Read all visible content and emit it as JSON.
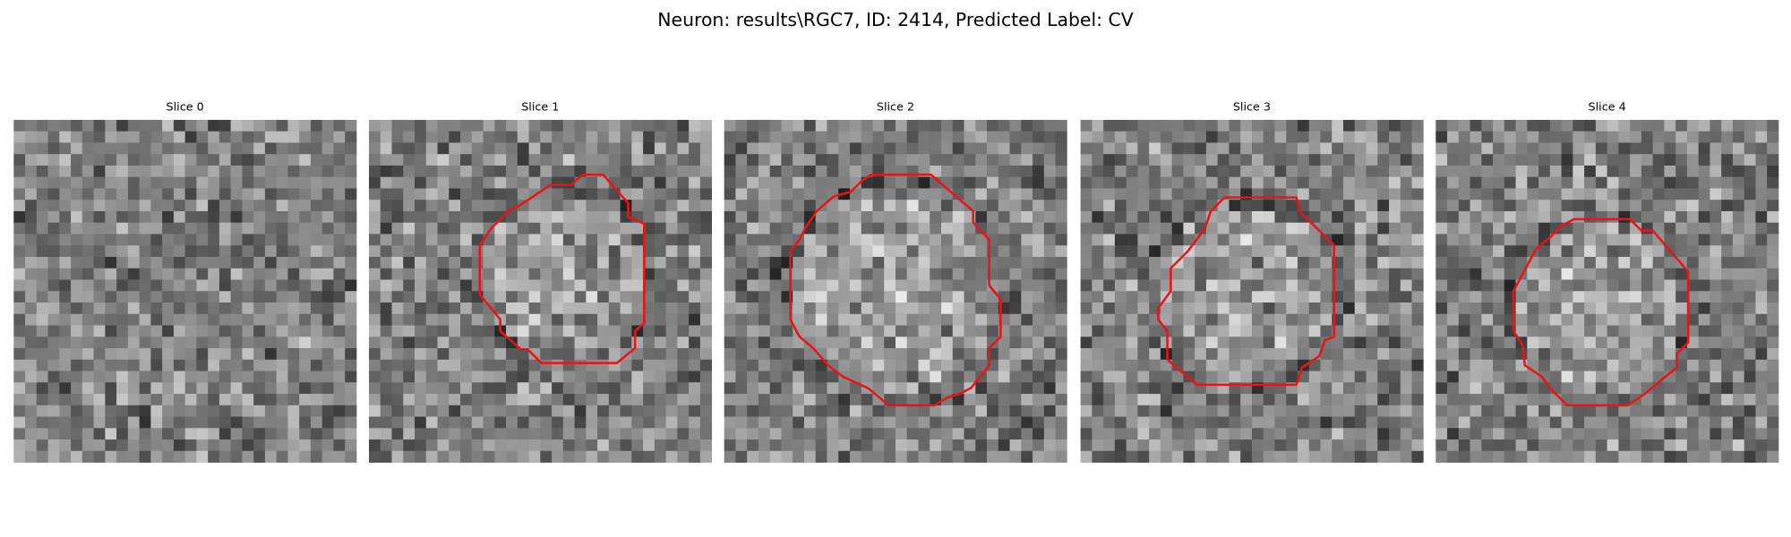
{
  "title": "Neuron: results\\RGC7, ID: 2414, Predicted Label: CV",
  "panels": [
    {
      "title": "Slice 0"
    },
    {
      "title": "Slice 1"
    },
    {
      "title": "Slice 2"
    },
    {
      "title": "Slice 3"
    },
    {
      "title": "Slice 4"
    }
  ]
}
